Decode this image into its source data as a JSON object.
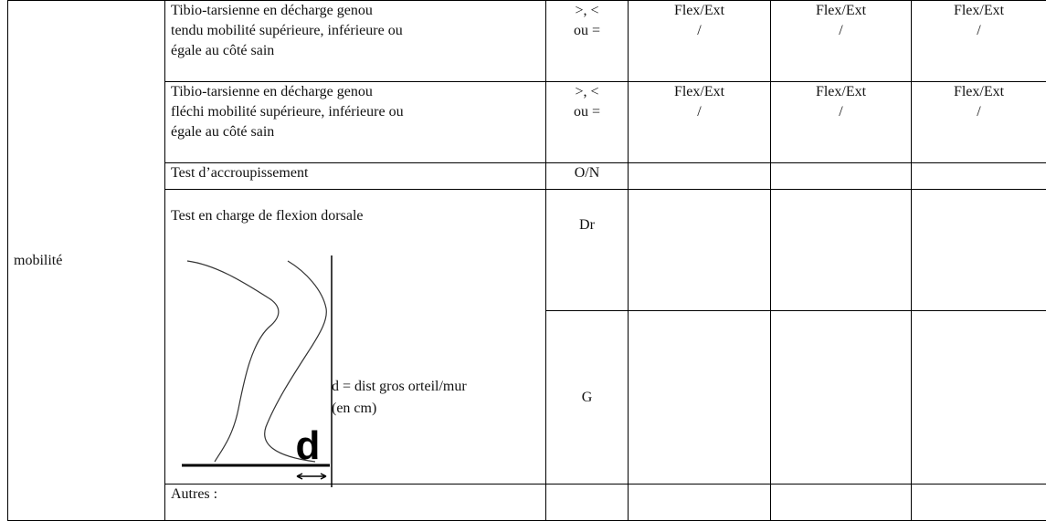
{
  "label": "mobilité",
  "rows": [
    {
      "description": [
        "Tibio-tarsienne en décharge genou",
        "tendu mobilité supérieure, inférieure ou",
        "égale au côté sain"
      ],
      "scale": [
        ">, <",
        "ou ="
      ],
      "values": [
        [
          "Flex/Ext",
          "/"
        ],
        [
          "Flex/Ext",
          "/"
        ],
        [
          "Flex/Ext",
          "/"
        ]
      ]
    },
    {
      "description": [
        "Tibio-tarsienne en décharge genou",
        "fléchi mobilité supérieure, inférieure ou",
        "égale au côté sain"
      ],
      "scale": [
        ">, <",
        "ou ="
      ],
      "values": [
        [
          "Flex/Ext",
          "/"
        ],
        [
          "Flex/Ext",
          "/"
        ],
        [
          "Flex/Ext",
          "/"
        ]
      ]
    }
  ],
  "squat": {
    "description": "Test d’accroupissement",
    "scale": "O/N"
  },
  "dorsiflexion": {
    "description": "Test en charge de flexion dorsale",
    "figure_label": "d",
    "caption": [
      "d = dist gros orteil/mur",
      "(en cm)"
    ],
    "sides": [
      "Dr",
      "G"
    ]
  },
  "other": {
    "description": "Autres :"
  }
}
